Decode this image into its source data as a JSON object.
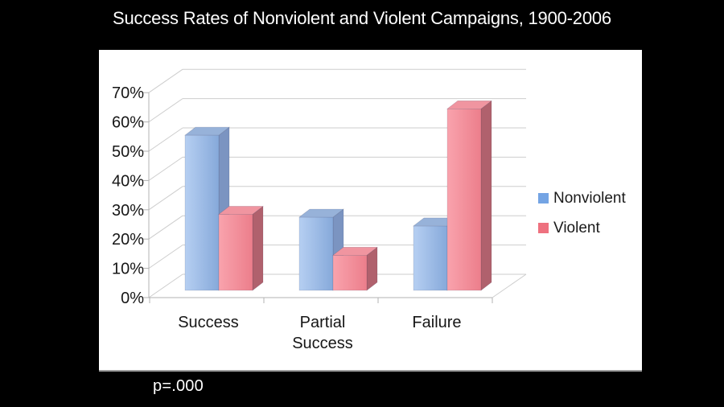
{
  "title": "Success Rates of Nonviolent and Violent Campaigns, 1900-2006",
  "footnote": "p=.000",
  "chart_data": {
    "type": "bar",
    "style": "3d",
    "title": "Success Rates of Nonviolent and Violent Campaigns, 1900-2006",
    "categories": [
      "Success",
      "Partial Success",
      "Failure"
    ],
    "series": [
      {
        "name": "Nonviolent",
        "values": [
          53,
          25,
          22
        ],
        "colors": {
          "front_light": "#b6cff2",
          "front_dark": "#86a9da",
          "side": "#7b94c1",
          "top": "#97b2d9",
          "swatch": "#74a4e4"
        }
      },
      {
        "name": "Violent",
        "values": [
          26,
          12,
          62
        ],
        "colors": {
          "front_light": "#f9a3ad",
          "front_dark": "#ec7e8b",
          "side": "#b0616d",
          "top": "#f095a0",
          "swatch": "#ee717f"
        }
      }
    ],
    "y_ticks": [
      "0%",
      "10%",
      "20%",
      "30%",
      "40%",
      "50%",
      "60%",
      "70%"
    ],
    "ylim": [
      0,
      70
    ],
    "ytick_step": 10,
    "grid": true,
    "legend_position": "right",
    "annotation": "p=.000",
    "background": "#000000",
    "plot_background": "#ffffff",
    "grid_color": "#cdcdcd",
    "axis_color": "#b3b3b3"
  }
}
